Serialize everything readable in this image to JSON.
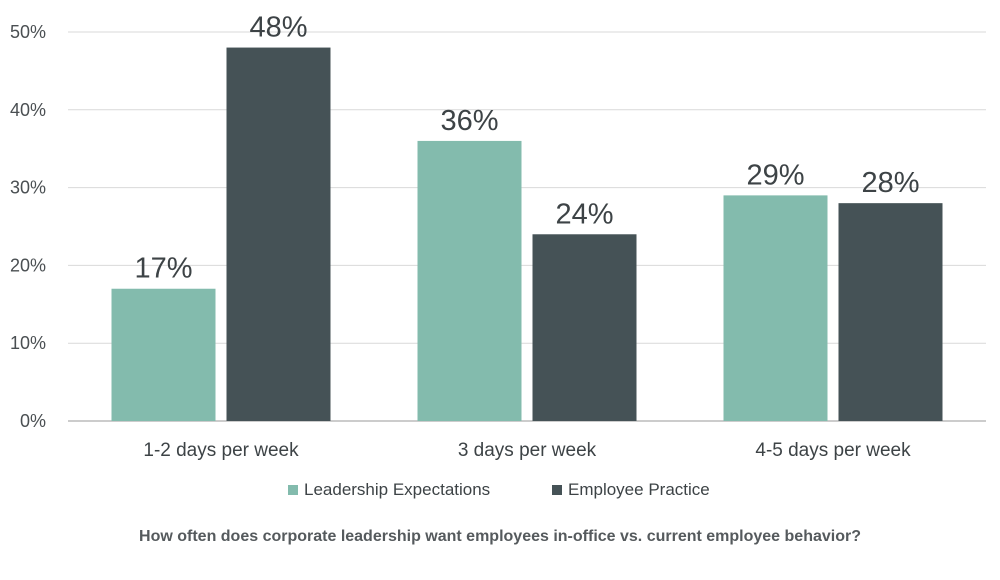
{
  "chart_data": {
    "type": "bar",
    "title": "",
    "caption": "How often does corporate leadership want employees in-office vs. current employee behavior?",
    "xlabel": "",
    "ylabel": "",
    "categories": [
      "1-2 days per week",
      "3 days per week",
      "4-5 days per week"
    ],
    "series": [
      {
        "name": "Leadership Expectations",
        "values": [
          17,
          36,
          29
        ],
        "labels": [
          "17%",
          "36%",
          "29%"
        ],
        "color": "#83bbad"
      },
      {
        "name": "Employee Practice",
        "values": [
          48,
          24,
          28
        ],
        "labels": [
          "48%",
          "24%",
          "28%"
        ],
        "color": "#455256"
      }
    ],
    "ylim": [
      0,
      50
    ],
    "yticks": [
      0,
      10,
      20,
      30,
      40,
      50
    ],
    "ytick_labels": [
      "0%",
      "10%",
      "20%",
      "30%",
      "40%",
      "50%"
    ],
    "grid": true,
    "legend_position": "bottom-center"
  }
}
